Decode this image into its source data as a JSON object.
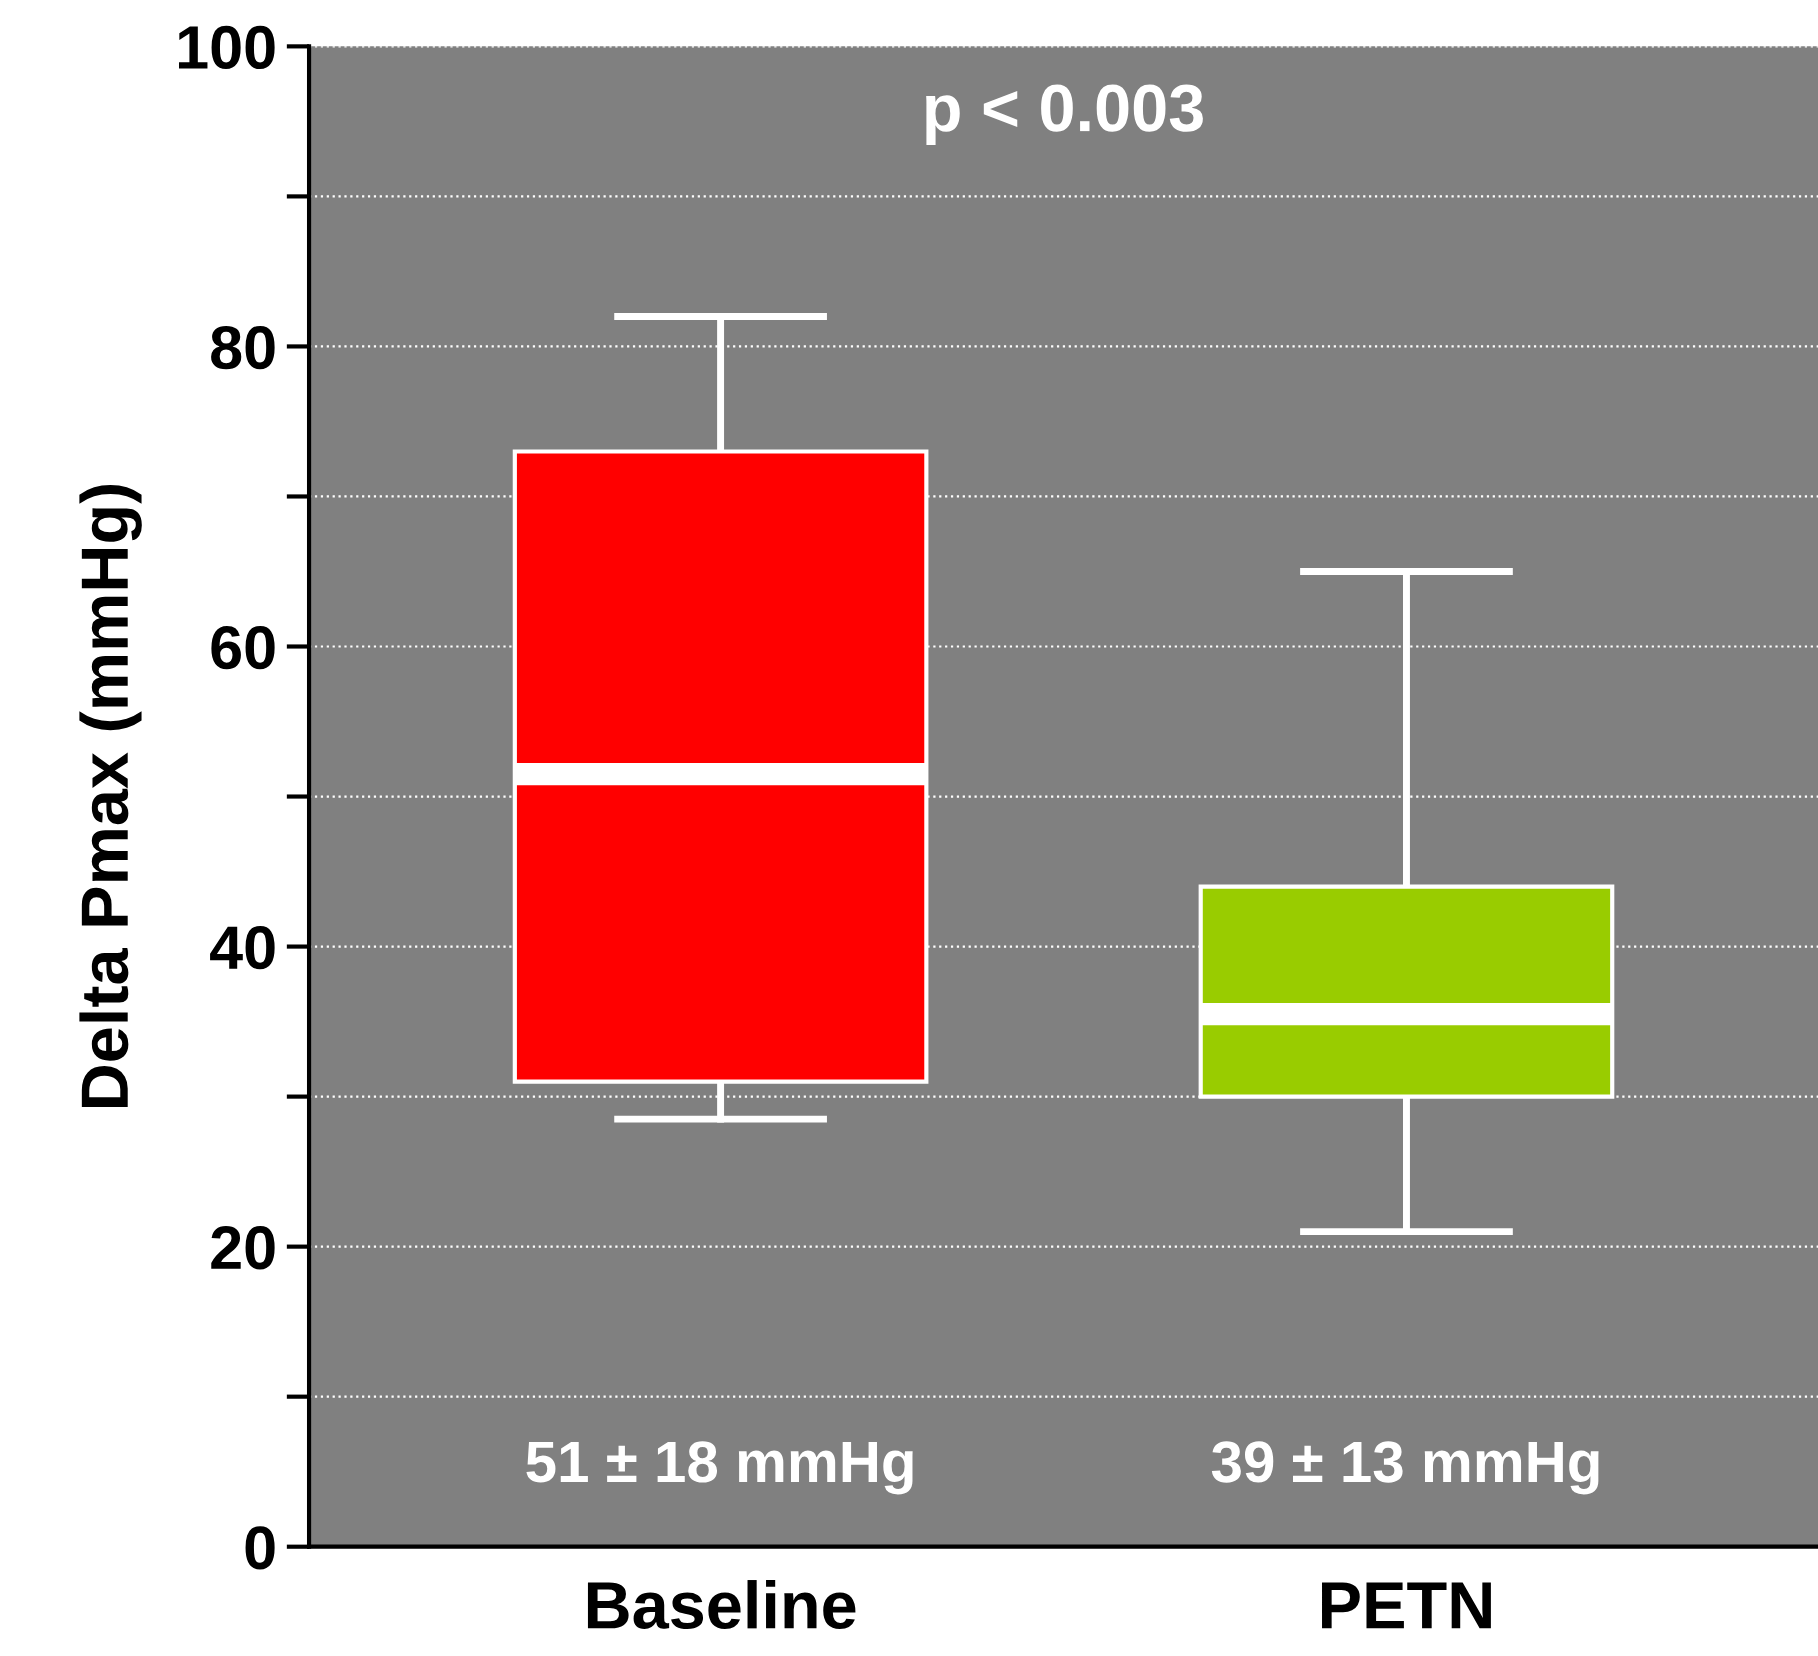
{
  "chart_data": {
    "type": "box",
    "ylabel": "Delta Pmax (mmHg)",
    "categories": [
      "Baseline",
      "PETN"
    ],
    "boxes": [
      {
        "low": 28.5,
        "q1": 31,
        "median": 51.5,
        "q3": 73,
        "high": 82
      },
      {
        "low": 21,
        "q1": 30,
        "median": 35.5,
        "q3": 44,
        "high": 65
      }
    ],
    "colors": [
      "#ff0000",
      "#99cc00"
    ],
    "ylim": [
      0,
      100
    ],
    "yticks": [
      0,
      {
        "value": 10,
        "label": null
      },
      20,
      {
        "value": 30,
        "label": null
      },
      40,
      {
        "value": 50,
        "label": null
      },
      60,
      {
        "value": 70,
        "label": null
      },
      80,
      {
        "value": 90,
        "label": null
      },
      100
    ],
    "grid": "y",
    "annotations": [
      "p < 0.003",
      "51 ± 18 mmHg",
      "39 ± 13 mmHg"
    ]
  }
}
